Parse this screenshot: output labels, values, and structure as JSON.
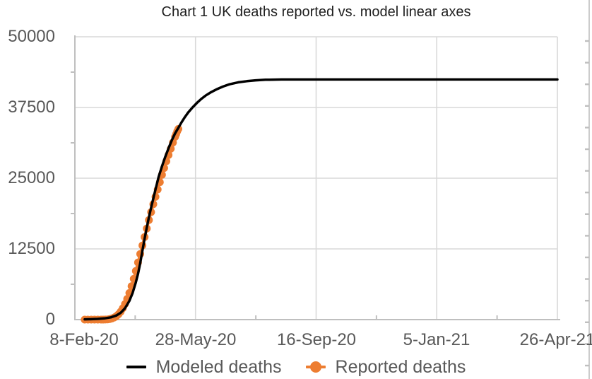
{
  "title": "Chart 1 UK deaths reported vs. model linear axes",
  "colors": {
    "model_line": "#000000",
    "reported_marker": "#ED7D31",
    "gridline": "#D9D9D9",
    "axis_line": "#BFBFBF",
    "tick": "#BFBFBF",
    "axis_text": "#595959",
    "title_text": "#1f1f1f",
    "background": "#ffffff"
  },
  "chart_data": {
    "type": "line",
    "title": "Chart 1 UK deaths reported vs. model linear axes",
    "xlabel": "",
    "ylabel": "",
    "grid": true,
    "legend_position": "bottom",
    "x_axis": {
      "tick_labels": [
        "8-Feb-20",
        "28-May-20",
        "16-Sep-20",
        "5-Jan-21",
        "26-Apr-21"
      ],
      "range_days": [
        0,
        443
      ],
      "tick_days": [
        0,
        110.75,
        221.5,
        332.25,
        443
      ],
      "minor_ticks_between_majors": true
    },
    "y_axis": {
      "tick_labels": [
        "0",
        "12500",
        "25000",
        "37500",
        "50000"
      ],
      "ticks": [
        0,
        12500,
        25000,
        37500,
        50000
      ],
      "range": [
        0,
        50000
      ],
      "minor_tick_step": 6250
    },
    "series": [
      {
        "name": "Modeled deaths",
        "type": "line",
        "color": "#000000",
        "x_unit": "days since 8-Feb-20",
        "points": [
          [
            9,
            50
          ],
          [
            15,
            80
          ],
          [
            21,
            130
          ],
          [
            27,
            210
          ],
          [
            33,
            400
          ],
          [
            38,
            720
          ],
          [
            42,
            1200
          ],
          [
            46,
            2000
          ],
          [
            50,
            3300
          ],
          [
            53,
            4700
          ],
          [
            56,
            6600
          ],
          [
            58,
            8100
          ],
          [
            60,
            10000
          ],
          [
            62,
            12200
          ],
          [
            64,
            14300
          ],
          [
            66,
            16300
          ],
          [
            68,
            18100
          ],
          [
            70,
            19800
          ],
          [
            72,
            21400
          ],
          [
            74,
            23000
          ],
          [
            77,
            25300
          ],
          [
            80,
            27100
          ],
          [
            83,
            28800
          ],
          [
            86,
            30300
          ],
          [
            89,
            31700
          ],
          [
            92,
            32900
          ],
          [
            95,
            33900
          ],
          [
            98,
            34900
          ],
          [
            101,
            35800
          ],
          [
            104,
            36600
          ],
          [
            108,
            37500
          ],
          [
            112,
            38300
          ],
          [
            116,
            39000
          ],
          [
            120,
            39600
          ],
          [
            125,
            40200
          ],
          [
            130,
            40700
          ],
          [
            136,
            41200
          ],
          [
            142,
            41600
          ],
          [
            150,
            41950
          ],
          [
            158,
            42150
          ],
          [
            166,
            42300
          ],
          [
            175,
            42400
          ],
          [
            190,
            42450
          ],
          [
            210,
            42450
          ],
          [
            240,
            42450
          ],
          [
            280,
            42450
          ],
          [
            320,
            42450
          ],
          [
            360,
            42450
          ],
          [
            400,
            42450
          ],
          [
            443,
            42450
          ]
        ]
      },
      {
        "name": "Reported deaths",
        "type": "line-marker",
        "color": "#ED7D31",
        "x_unit": "days since 8-Feb-20",
        "points": [
          [
            9,
            0
          ],
          [
            12,
            0
          ],
          [
            15,
            0
          ],
          [
            18,
            0
          ],
          [
            21,
            0
          ],
          [
            24,
            0
          ],
          [
            26,
            2
          ],
          [
            28,
            10
          ],
          [
            30,
            35
          ],
          [
            32,
            100
          ],
          [
            34,
            200
          ],
          [
            36,
            360
          ],
          [
            38,
            600
          ],
          [
            40,
            940
          ],
          [
            42,
            1400
          ],
          [
            44,
            2000
          ],
          [
            46,
            2750
          ],
          [
            48,
            3650
          ],
          [
            50,
            4700
          ],
          [
            52,
            5900
          ],
          [
            54,
            7200
          ],
          [
            56,
            8600
          ],
          [
            58,
            10100
          ],
          [
            60,
            11600
          ],
          [
            62,
            13100
          ],
          [
            64,
            14600
          ],
          [
            66,
            16100
          ],
          [
            68,
            17600
          ],
          [
            70,
            19000
          ],
          [
            72,
            20400
          ],
          [
            74,
            21700
          ],
          [
            76,
            23000
          ],
          [
            78,
            24300
          ],
          [
            80,
            25600
          ],
          [
            82,
            26800
          ],
          [
            84,
            28000
          ],
          [
            86,
            29100
          ],
          [
            88,
            30200
          ],
          [
            90,
            31300
          ],
          [
            92,
            32300
          ],
          [
            93,
            32800
          ],
          [
            94,
            33300
          ],
          [
            95,
            33700
          ]
        ]
      }
    ]
  },
  "legend": {
    "items": [
      {
        "label": "Modeled deaths",
        "marker": "line"
      },
      {
        "label": "Reported deaths",
        "marker": "line-circle"
      }
    ]
  }
}
